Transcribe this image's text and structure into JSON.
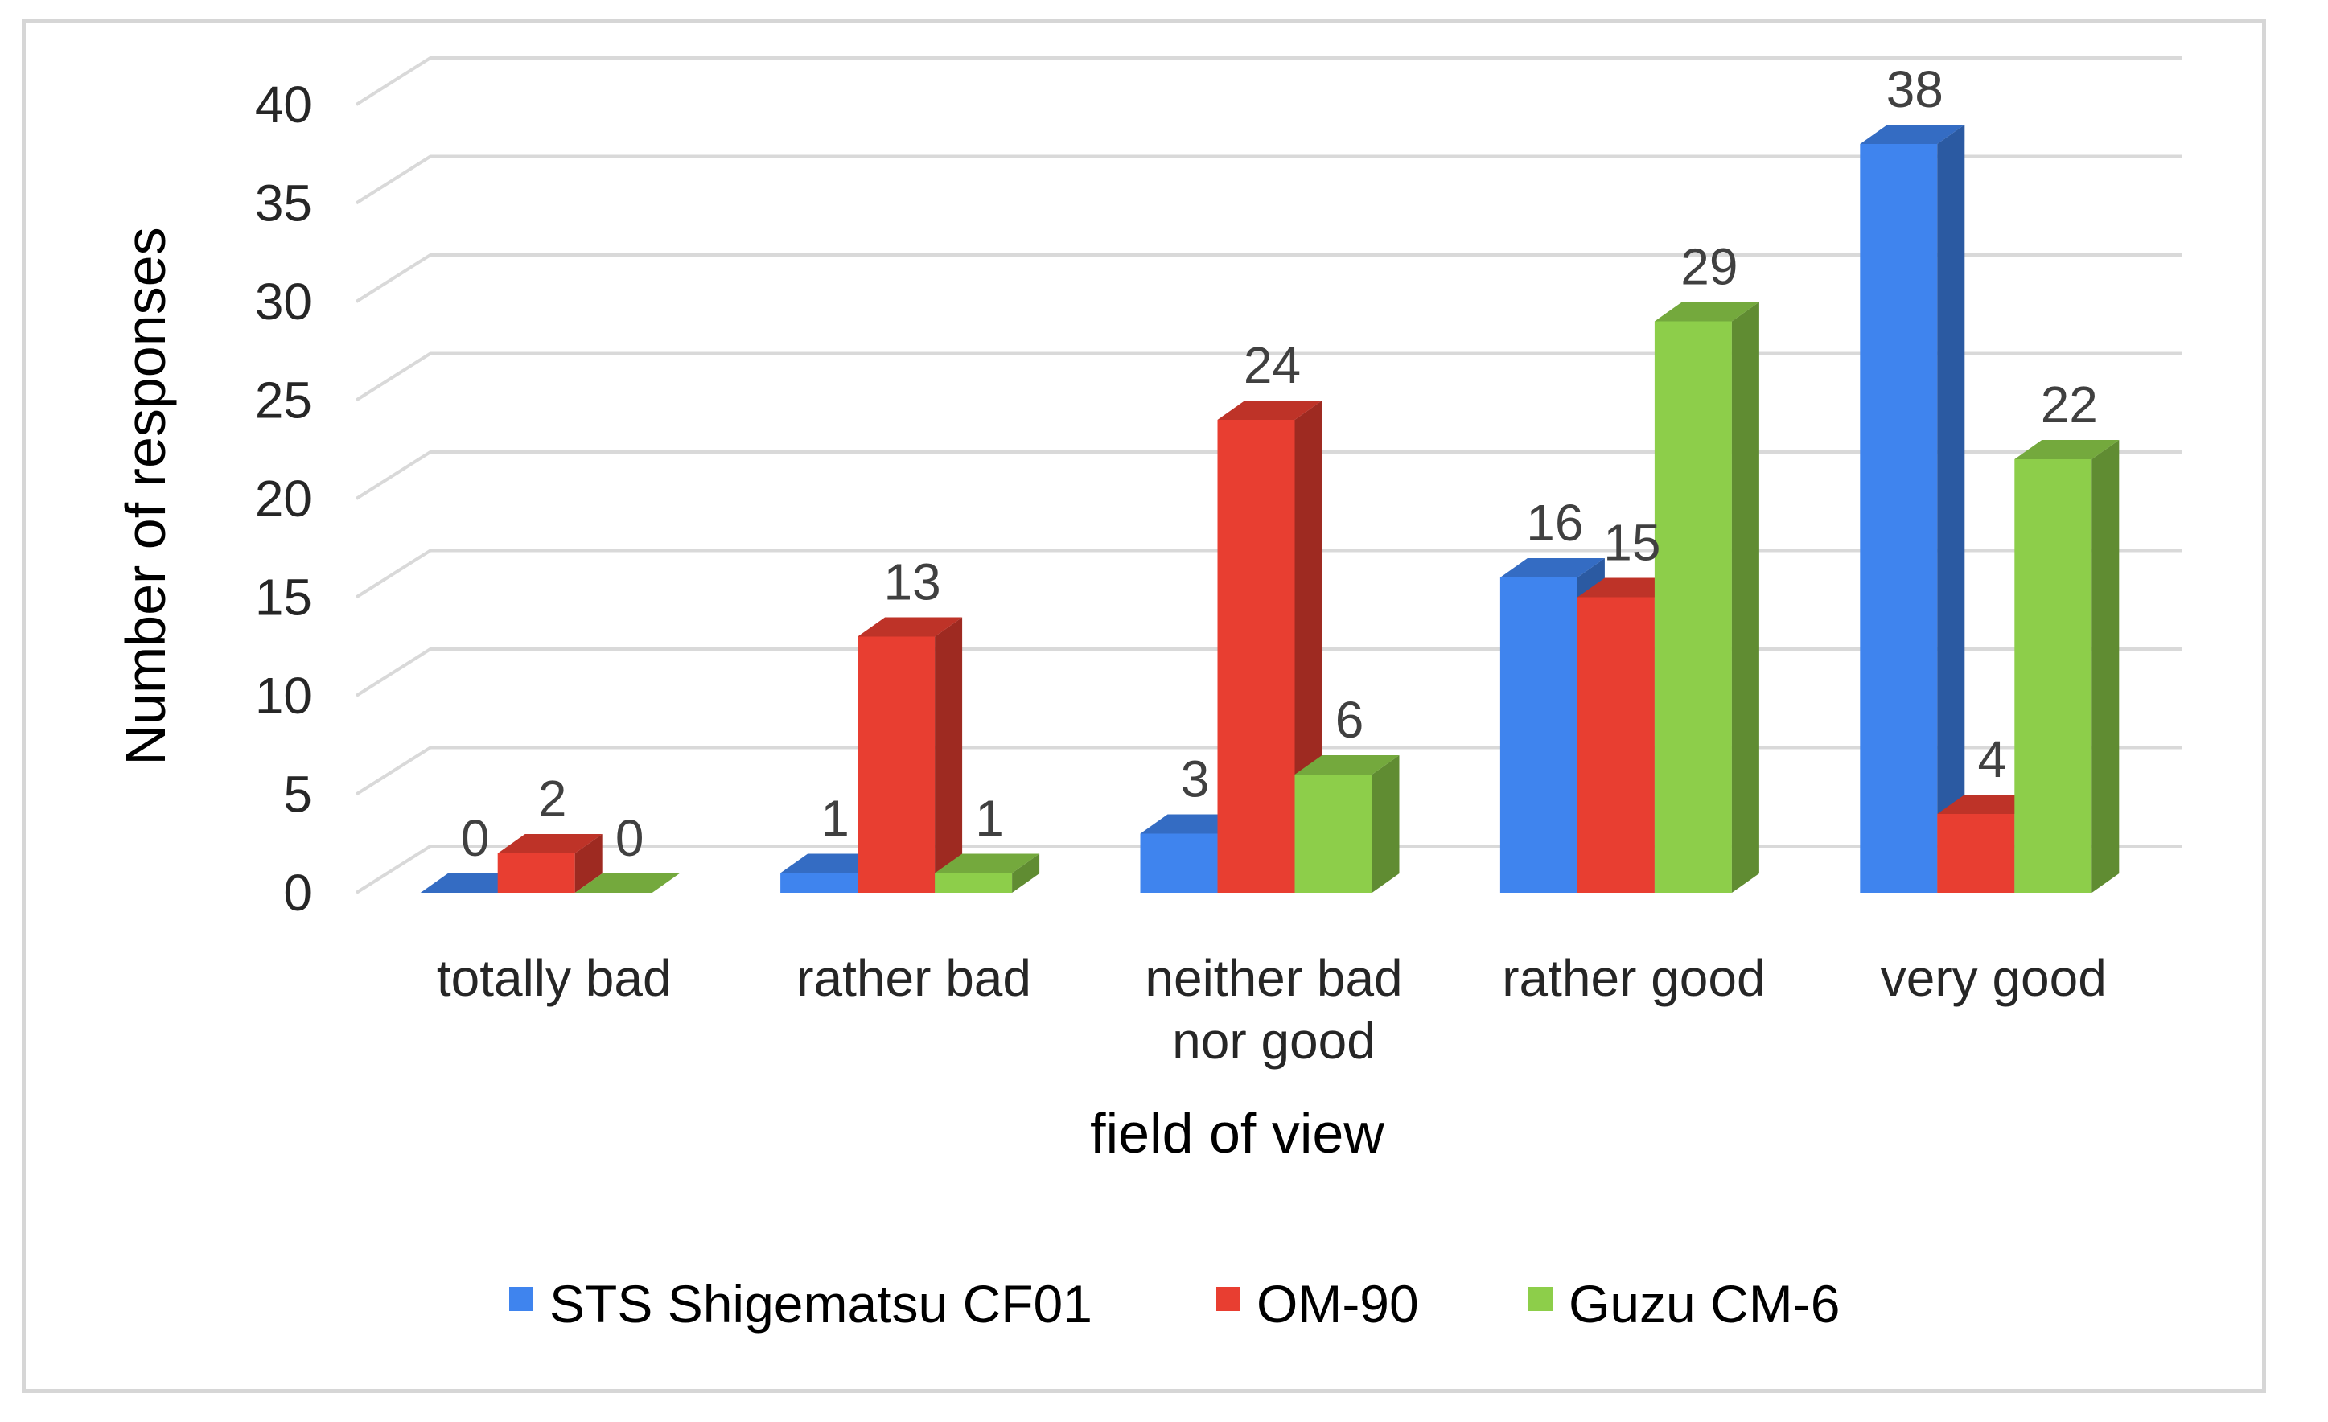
{
  "chart_data": {
    "type": "bar",
    "style": "3d-clustered-column",
    "categories": [
      "totally bad",
      "rather bad",
      "neither bad nor good",
      "rather good",
      "very good"
    ],
    "category_lines": [
      [
        "totally bad"
      ],
      [
        "rather bad"
      ],
      [
        "neither bad",
        "nor good"
      ],
      [
        "rather good"
      ],
      [
        "very good"
      ]
    ],
    "series": [
      {
        "name": "STS Shigematsu CF01",
        "color": "#3f84ee",
        "values": [
          0,
          1,
          3,
          16,
          38
        ]
      },
      {
        "name": "OM-90",
        "color": "#e83e31",
        "values": [
          2,
          13,
          24,
          15,
          4
        ]
      },
      {
        "name": "Guzu CM-6",
        "color": "#8dce4a",
        "values": [
          0,
          1,
          6,
          29,
          22
        ]
      }
    ],
    "xlabel": "field of view",
    "ylabel": "Number of responses",
    "ylim": [
      0,
      40
    ],
    "yticks": [
      0,
      5,
      10,
      15,
      20,
      25,
      30,
      35,
      40
    ],
    "grid": true,
    "data_labels": true,
    "legend_position": "bottom"
  }
}
